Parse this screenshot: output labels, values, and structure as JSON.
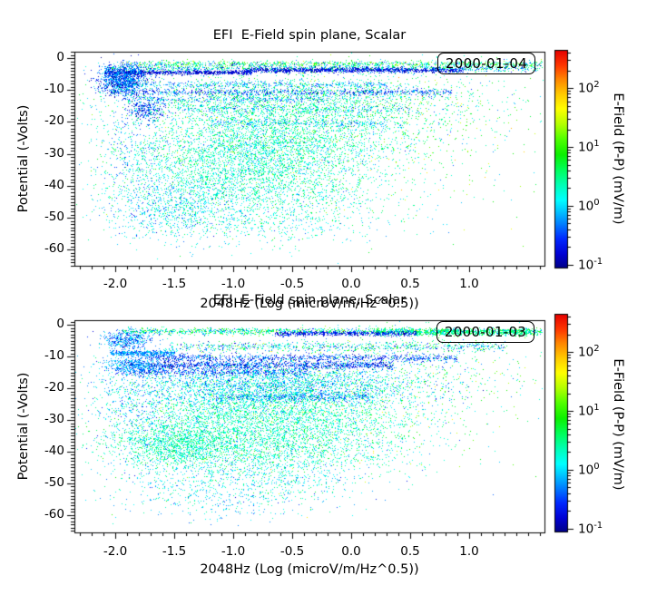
{
  "figure": {
    "background": "#ffffff",
    "type": "two stacked scatter-density panels with rainbow colorbars"
  },
  "colormap": {
    "scale": "log10 of E-Field (mV/m) mapped linearly onto rainbow stops",
    "log_min": -1.05,
    "log_max": 2.65,
    "stops": [
      [
        0.0,
        "#00008c"
      ],
      [
        0.06,
        "#0000d4"
      ],
      [
        0.13,
        "#0028ff"
      ],
      [
        0.2,
        "#0080ff"
      ],
      [
        0.26,
        "#00c8ff"
      ],
      [
        0.31,
        "#00ffff"
      ],
      [
        0.38,
        "#00ffb4"
      ],
      [
        0.45,
        "#00ff5a"
      ],
      [
        0.52,
        "#0cf000"
      ],
      [
        0.59,
        "#50ff00"
      ],
      [
        0.66,
        "#b4ff00"
      ],
      [
        0.73,
        "#ffff00"
      ],
      [
        0.8,
        "#ffc800"
      ],
      [
        0.87,
        "#ff8200"
      ],
      [
        0.93,
        "#ff3700"
      ],
      [
        1.0,
        "#e60000"
      ]
    ]
  },
  "chart_data": [
    {
      "type": "scatter",
      "title": "EFI  E-Field spin plane, Scalar",
      "legend_label": "2000-01-04",
      "xlabel": "2048Hz (Log (microV/m/Hz^0.5))",
      "ylabel": "Potential (-Volts)",
      "xlim": [
        -2.35,
        1.64
      ],
      "ylim": [
        2,
        -65
      ],
      "xticks": [
        -2.0,
        -1.5,
        -1.0,
        -0.5,
        0.0,
        0.5,
        1.0
      ],
      "xtick_labels": [
        "-2.0",
        "-1.5",
        "-1.0",
        "-0.5",
        "0.0",
        "0.5",
        "1.0"
      ],
      "x_minor_step": 0.1,
      "yticks": [
        0,
        -10,
        -20,
        -30,
        -40,
        -50,
        -60
      ],
      "ytick_labels": [
        "0",
        "-10",
        "-20",
        "-30",
        "-40",
        "-50",
        "-60"
      ],
      "y_minor_step": 1,
      "colorbar": {
        "label": "E-Field (P-P) (mV/m)",
        "scale": "log",
        "log_range": [
          -1.05,
          2.65
        ],
        "tick_exponents": [
          -1,
          0,
          1,
          2
        ],
        "tick_base": "10"
      },
      "point_clusters": {
        "seed": 104,
        "band_format": "[x0, x1, y_center, y_sigma, n_points, log10_value_mean, log10_value_sigma]",
        "blob_format": "[x_center, x_sigma, y_center, y_sigma, n_points, log10_value_mean, log10_value_sigma]",
        "bands": [
          [
            -1.95,
            1.62,
            -1.7,
            0.45,
            1000,
            0.45,
            0.55
          ],
          [
            -2.1,
            1.6,
            -3.1,
            0.5,
            1200,
            0.05,
            0.55
          ],
          [
            -2.1,
            -0.85,
            -4.4,
            0.3,
            800,
            -0.8,
            0.18
          ],
          [
            -0.9,
            0.95,
            -3.7,
            0.35,
            1100,
            -0.75,
            0.2
          ],
          [
            -2.0,
            0.3,
            -8.2,
            0.5,
            450,
            -0.2,
            0.3
          ],
          [
            -2.05,
            0.85,
            -10.6,
            0.5,
            800,
            -0.5,
            0.3
          ],
          [
            -1.95,
            -0.2,
            -12.8,
            0.5,
            300,
            -0.25,
            0.3
          ],
          [
            -1.6,
            0.5,
            -15.6,
            0.6,
            260,
            -0.1,
            0.35
          ],
          [
            -1.2,
            0.3,
            -20.3,
            0.5,
            230,
            -0.15,
            0.25
          ]
        ],
        "blobs": [
          [
            -1.95,
            0.1,
            -6.5,
            2.2,
            1200,
            -0.45,
            0.35
          ],
          [
            -1.73,
            0.07,
            -16.0,
            1.8,
            260,
            -0.6,
            0.25
          ],
          [
            -0.55,
            0.75,
            -13.5,
            4.5,
            2200,
            0.35,
            0.35
          ],
          [
            -0.65,
            0.6,
            -23.5,
            5.0,
            2000,
            0.3,
            0.33
          ],
          [
            -0.85,
            0.55,
            -33.0,
            5.5,
            2400,
            0.3,
            0.3
          ],
          [
            -0.9,
            0.6,
            -43.0,
            4.5,
            1200,
            0.25,
            0.3
          ],
          [
            -1.55,
            0.25,
            -47.0,
            5.0,
            550,
            -0.05,
            0.3
          ],
          [
            -0.8,
            0.5,
            -52.0,
            3.5,
            450,
            0.2,
            0.3
          ],
          [
            0.7,
            0.45,
            -20.0,
            12.0,
            400,
            0.55,
            0.45
          ],
          [
            0.0,
            0.9,
            -25.0,
            13.0,
            150,
            1.45,
            0.25
          ],
          [
            -1.85,
            0.15,
            -30.0,
            10.0,
            280,
            -0.15,
            0.3
          ]
        ]
      }
    },
    {
      "type": "scatter",
      "title": "EFI  E-Field spin plane, Scalar",
      "legend_label": "2000-01-03",
      "xlabel": "2048Hz (Log (microV/m/Hz^0.5))",
      "ylabel": "Potential (-Volts)",
      "xlim": [
        -2.35,
        1.64
      ],
      "ylim": [
        1.5,
        -65.5
      ],
      "xticks": [
        -2.0,
        -1.5,
        -1.0,
        -0.5,
        0.0,
        0.5,
        1.0
      ],
      "xtick_labels": [
        "-2.0",
        "-1.5",
        "-1.0",
        "-0.5",
        "0.0",
        "0.5",
        "1.0"
      ],
      "x_minor_step": 0.1,
      "yticks": [
        0,
        -10,
        -20,
        -30,
        -40,
        -50,
        -60
      ],
      "ytick_labels": [
        "0",
        "-10",
        "-20",
        "-30",
        "-40",
        "-50",
        "-60"
      ],
      "y_minor_step": 1,
      "colorbar": {
        "label": "E-Field (P-P) (mV/m)",
        "scale": "log",
        "log_range": [
          -1.05,
          2.65
        ],
        "tick_exponents": [
          -1,
          0,
          1,
          2
        ],
        "tick_base": "10"
      },
      "point_clusters": {
        "seed": 103,
        "band_format": "[x0, x1, y_center, y_sigma, n_points, log10_value_mean, log10_value_sigma]",
        "blob_format": "[x_center, x_sigma, y_center, y_sigma, n_points, log10_value_mean, log10_value_sigma]",
        "bands": [
          [
            -1.95,
            1.62,
            -1.9,
            0.5,
            1400,
            0.35,
            0.5
          ],
          [
            0.2,
            1.58,
            -2.2,
            0.5,
            800,
            0.45,
            0.3
          ],
          [
            -0.65,
            0.55,
            -2.6,
            0.35,
            550,
            -0.7,
            0.2
          ],
          [
            -1.6,
            1.3,
            -6.8,
            0.8,
            800,
            0.1,
            0.5
          ],
          [
            -2.05,
            -1.5,
            -8.8,
            0.5,
            450,
            -0.25,
            0.25
          ],
          [
            -1.75,
            0.9,
            -10.3,
            0.6,
            900,
            -0.5,
            0.3
          ],
          [
            -1.95,
            0.35,
            -12.6,
            0.65,
            1200,
            -0.6,
            0.28
          ],
          [
            -2.0,
            -0.4,
            -14.8,
            0.6,
            550,
            -0.5,
            0.25
          ],
          [
            -1.15,
            0.15,
            -22.6,
            0.6,
            450,
            -0.35,
            0.3
          ]
        ],
        "blobs": [
          [
            -1.9,
            0.1,
            -4.5,
            1.5,
            450,
            -0.3,
            0.3
          ],
          [
            -1.85,
            0.12,
            -12.5,
            1.2,
            350,
            -0.2,
            0.2
          ],
          [
            -0.7,
            0.65,
            -18.5,
            3.5,
            2800,
            0.0,
            0.35
          ],
          [
            -0.75,
            0.65,
            -27.0,
            4.5,
            2500,
            0.3,
            0.3
          ],
          [
            -1.45,
            0.3,
            -37.5,
            3.5,
            1400,
            0.35,
            0.28
          ],
          [
            -0.6,
            0.6,
            -37.0,
            5.0,
            2100,
            0.3,
            0.3
          ],
          [
            -0.9,
            0.55,
            -48.0,
            4.0,
            800,
            0.12,
            0.3
          ],
          [
            -1.0,
            0.5,
            -56.0,
            3.0,
            260,
            0.0,
            0.3
          ],
          [
            0.55,
            0.5,
            -15.0,
            9.0,
            550,
            0.5,
            0.45
          ],
          [
            -0.2,
            0.8,
            -25.0,
            12.0,
            180,
            1.4,
            0.3
          ],
          [
            -1.8,
            0.18,
            -28.0,
            9.0,
            380,
            -0.1,
            0.3
          ]
        ]
      }
    }
  ]
}
